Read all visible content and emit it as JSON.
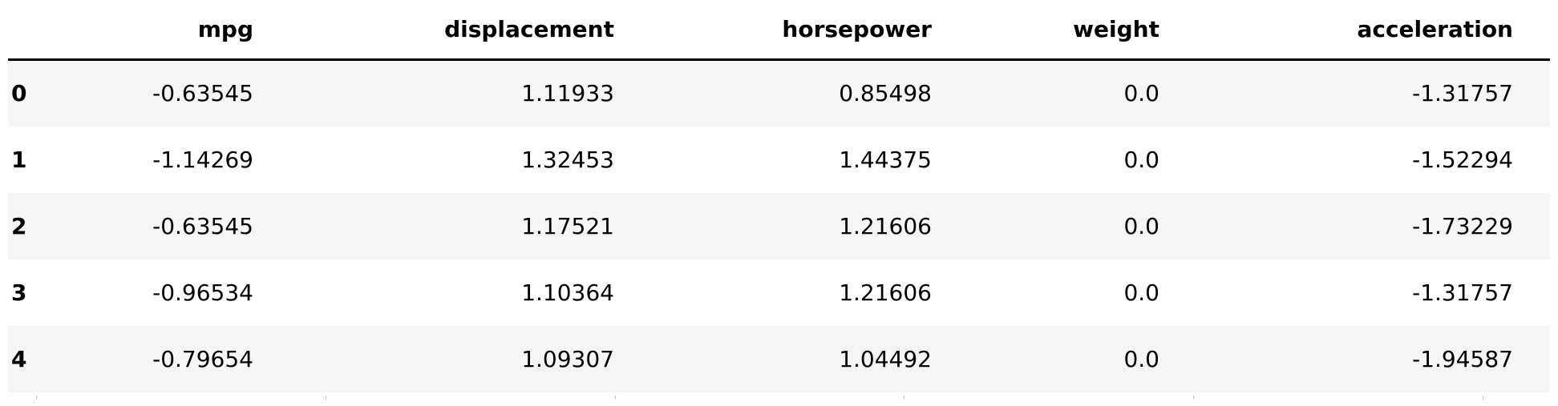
{
  "table": {
    "columns": [
      "mpg",
      "displacement",
      "horsepower",
      "weight",
      "acceleration"
    ],
    "rows": [
      {
        "index": "0",
        "values": [
          "-0.63545",
          "1.11933",
          "0.85498",
          "0.0",
          "-1.31757"
        ]
      },
      {
        "index": "1",
        "values": [
          "-1.14269",
          "1.32453",
          "1.44375",
          "0.0",
          "-1.52294"
        ]
      },
      {
        "index": "2",
        "values": [
          "-0.63545",
          "1.17521",
          "1.21606",
          "0.0",
          "-1.73229"
        ]
      },
      {
        "index": "3",
        "values": [
          "-0.96534",
          "1.10364",
          "1.21606",
          "0.0",
          "-1.31757"
        ]
      },
      {
        "index": "4",
        "values": [
          "-0.79654",
          "1.09307",
          "1.04492",
          "0.0",
          "-1.94587"
        ]
      }
    ]
  },
  "chart_data": {
    "type": "table",
    "columns": [
      "mpg",
      "displacement",
      "horsepower",
      "weight",
      "acceleration"
    ],
    "index": [
      "0",
      "1",
      "2",
      "3",
      "4"
    ],
    "values": [
      [
        -0.63545,
        1.11933,
        0.85498,
        0.0,
        -1.31757
      ],
      [
        -1.14269,
        1.32453,
        1.44375,
        0.0,
        -1.52294
      ],
      [
        -0.63545,
        1.17521,
        1.21606,
        0.0,
        -1.73229
      ],
      [
        -0.96534,
        1.10364,
        1.21606,
        0.0,
        -1.31757
      ],
      [
        -0.79654,
        1.09307,
        1.04492,
        0.0,
        -1.94587
      ]
    ]
  }
}
